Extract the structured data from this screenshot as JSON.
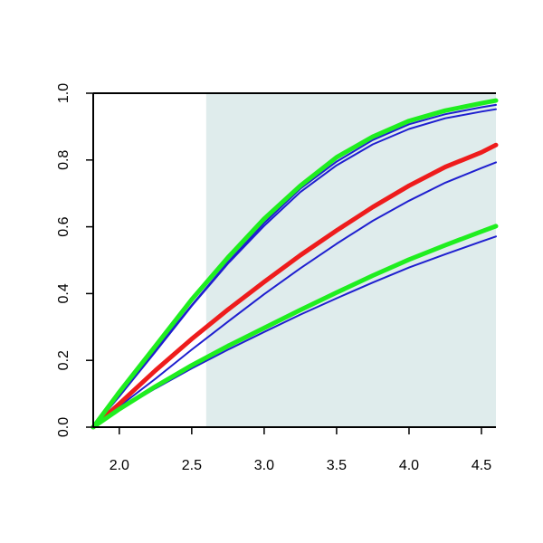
{
  "chart_data": {
    "type": "line",
    "title": "",
    "xlabel": "",
    "ylabel": "",
    "xlim": [
      1.82,
      4.6
    ],
    "ylim": [
      0.0,
      1.0
    ],
    "x_ticks": [
      2.0,
      2.5,
      3.0,
      3.5,
      4.0,
      4.5
    ],
    "x_tick_labels": [
      "2.0",
      "2.5",
      "3.0",
      "3.5",
      "4.0",
      "4.5"
    ],
    "y_ticks": [
      0.0,
      0.2,
      0.4,
      0.6,
      0.8,
      1.0
    ],
    "y_tick_labels": [
      "0.0",
      "0.2",
      "0.4",
      "0.6",
      "0.8",
      "1.0"
    ],
    "grid": false,
    "legend": "none",
    "shaded_region": {
      "x_from": 2.6,
      "x_to": 4.6,
      "color": "#dfecec"
    },
    "colors": {
      "red": "#ee1c1c",
      "green": "#1fee1f",
      "blue": "#1f1fcf",
      "axis": "#000000"
    },
    "x": [
      1.82,
      2.0,
      2.25,
      2.5,
      2.75,
      3.0,
      3.25,
      3.5,
      3.75,
      4.0,
      4.25,
      4.5,
      4.6
    ],
    "series": [
      {
        "color": "blue",
        "width": 2,
        "values": [
          0.0,
          0.052,
          0.116,
          0.176,
          0.232,
          0.285,
          0.337,
          0.386,
          0.433,
          0.478,
          0.518,
          0.556,
          0.571
        ]
      },
      {
        "color": "blue",
        "width": 2,
        "values": [
          0.0,
          0.062,
          0.145,
          0.232,
          0.316,
          0.398,
          0.476,
          0.549,
          0.618,
          0.678,
          0.732,
          0.776,
          0.793
        ]
      },
      {
        "color": "blue",
        "width": 2,
        "values": [
          0.0,
          0.092,
          0.226,
          0.363,
          0.49,
          0.603,
          0.704,
          0.784,
          0.847,
          0.893,
          0.925,
          0.945,
          0.952
        ]
      },
      {
        "color": "blue",
        "width": 2,
        "values": [
          0.0,
          0.095,
          0.231,
          0.365,
          0.494,
          0.611,
          0.714,
          0.795,
          0.86,
          0.907,
          0.937,
          0.958,
          0.965
        ]
      },
      {
        "color": "red",
        "width": 5,
        "values": [
          0.0,
          0.07,
          0.17,
          0.264,
          0.352,
          0.435,
          0.515,
          0.589,
          0.659,
          0.723,
          0.779,
          0.823,
          0.845
        ]
      },
      {
        "color": "green",
        "width": 5,
        "values": [
          0.0,
          0.054,
          0.122,
          0.185,
          0.243,
          0.297,
          0.351,
          0.403,
          0.454,
          0.502,
          0.545,
          0.586,
          0.602
        ]
      },
      {
        "color": "green",
        "width": 5,
        "values": [
          0.0,
          0.105,
          0.243,
          0.382,
          0.508,
          0.624,
          0.723,
          0.808,
          0.87,
          0.917,
          0.948,
          0.97,
          0.978
        ]
      }
    ]
  }
}
